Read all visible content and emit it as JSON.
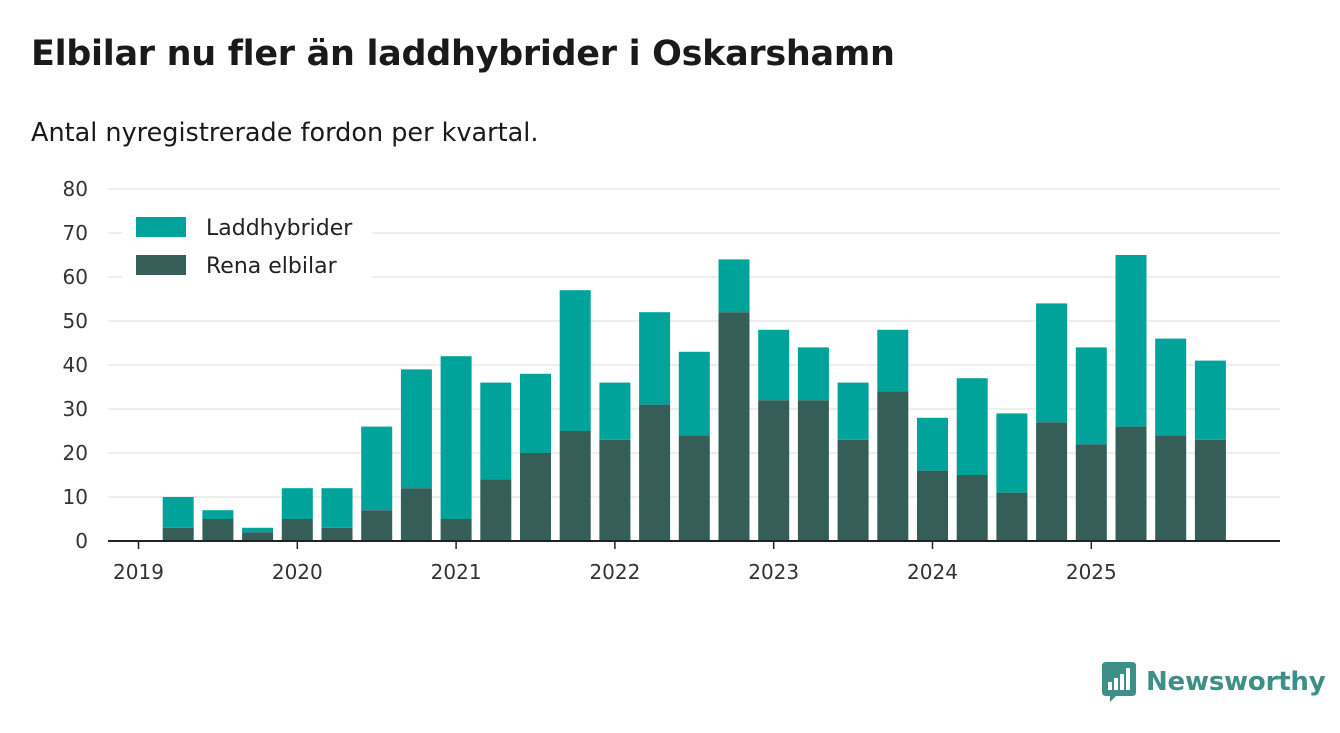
{
  "title": "Elbilar nu fler än laddhybrider i Oskarshamn",
  "subtitle": "Antal nyregistrerade fordon per kvartal.",
  "brand": {
    "name": "Newsworthy",
    "icon": "bar-chart-speech-bubble-icon",
    "color": "#3d8f88"
  },
  "chart_data": {
    "type": "bar",
    "stacked": true,
    "x": [
      "2019-Q1",
      "2019-Q2",
      "2019-Q3",
      "2019-Q4",
      "2020-Q1",
      "2020-Q2",
      "2020-Q3",
      "2020-Q4",
      "2021-Q1",
      "2021-Q2",
      "2021-Q3",
      "2021-Q4",
      "2022-Q1",
      "2022-Q2",
      "2022-Q3",
      "2022-Q4",
      "2023-Q1",
      "2023-Q2",
      "2023-Q3",
      "2023-Q4",
      "2024-Q1",
      "2024-Q2",
      "2024-Q3",
      "2024-Q4",
      "2025-Q1",
      "2025-Q2",
      "2025-Q3",
      "2025-Q4"
    ],
    "x_tick_labels": [
      "2019",
      "2020",
      "2021",
      "2022",
      "2023",
      "2024",
      "2025"
    ],
    "series": [
      {
        "name": "Rena elbilar",
        "color": "#345e57",
        "values": [
          0,
          3,
          5,
          2,
          5,
          3,
          7,
          12,
          5,
          14,
          20,
          25,
          23,
          31,
          24,
          52,
          32,
          32,
          23,
          34,
          16,
          15,
          11,
          27,
          22,
          26,
          24,
          23
        ]
      },
      {
        "name": "Laddhybrider",
        "color": "#00a39a",
        "values": [
          0,
          7,
          2,
          1,
          7,
          9,
          19,
          27,
          37,
          22,
          18,
          32,
          13,
          21,
          19,
          12,
          16,
          12,
          13,
          14,
          12,
          22,
          18,
          27,
          22,
          39,
          22,
          18
        ]
      }
    ],
    "legend": {
      "position": "top-left",
      "order": [
        "Laddhybrider",
        "Rena elbilar"
      ]
    },
    "ylim": [
      0,
      80
    ],
    "yticks": [
      0,
      10,
      20,
      30,
      40,
      50,
      60,
      70,
      80
    ],
    "grid": true,
    "xlabel": "",
    "ylabel": ""
  }
}
